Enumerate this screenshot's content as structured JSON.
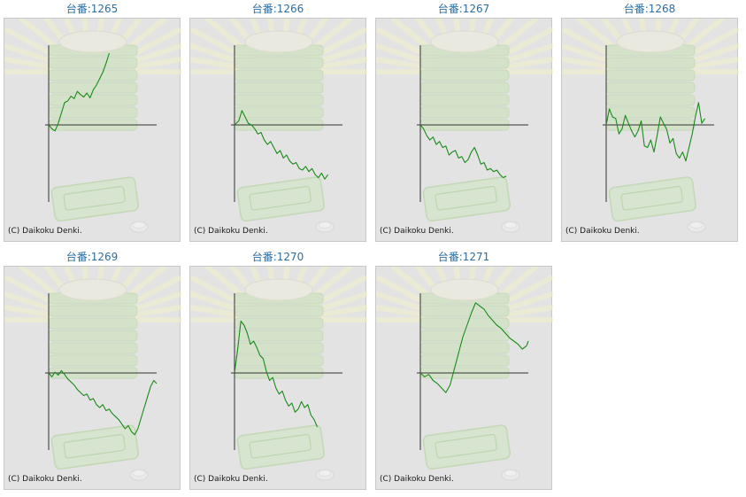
{
  "copyright": "(C) Daikoku Denki.",
  "line_color": "#1a8a1a",
  "axis_color": "#333333",
  "title_color": "#2a6fa6",
  "charts": [
    {
      "title": "台番:1265"
    },
    {
      "title": "台番:1266"
    },
    {
      "title": "台番:1267"
    },
    {
      "title": "台番:1268"
    },
    {
      "title": "台番:1269"
    },
    {
      "title": "台番:1270"
    },
    {
      "title": "台番:1271"
    }
  ],
  "chart_data": [
    {
      "type": "line",
      "title": "台番:1265",
      "xlim": [
        0,
        100
      ],
      "ylim": [
        -1,
        1
      ],
      "x": [
        0,
        3,
        6,
        9,
        12,
        15,
        18,
        21,
        24,
        27,
        30,
        33,
        36,
        39,
        42,
        45,
        48,
        51,
        54,
        57
      ],
      "y": [
        0,
        -0.05,
        -0.08,
        0.02,
        0.15,
        0.28,
        0.3,
        0.36,
        0.33,
        0.42,
        0.38,
        0.35,
        0.4,
        0.34,
        0.44,
        0.5,
        0.58,
        0.66,
        0.77,
        0.9
      ]
    },
    {
      "type": "line",
      "title": "台番:1266",
      "xlim": [
        0,
        100
      ],
      "ylim": [
        -1,
        1
      ],
      "x": [
        0,
        4,
        7,
        10,
        13,
        16,
        19,
        22,
        25,
        28,
        31,
        34,
        37,
        40,
        43,
        46,
        49,
        52,
        55,
        58,
        61,
        64,
        67,
        70,
        73,
        76,
        79,
        82,
        85,
        88
      ],
      "y": [
        0,
        0.05,
        0.18,
        0.1,
        0.02,
        0.0,
        -0.05,
        -0.12,
        -0.1,
        -0.2,
        -0.26,
        -0.22,
        -0.3,
        -0.38,
        -0.34,
        -0.44,
        -0.4,
        -0.48,
        -0.52,
        -0.5,
        -0.58,
        -0.6,
        -0.55,
        -0.62,
        -0.58,
        -0.66,
        -0.7,
        -0.64,
        -0.72,
        -0.66
      ]
    },
    {
      "type": "line",
      "title": "台番:1267",
      "xlim": [
        0,
        100
      ],
      "ylim": [
        -1,
        1
      ],
      "x": [
        0,
        3,
        6,
        9,
        12,
        15,
        18,
        21,
        24,
        27,
        30,
        33,
        36,
        39,
        42,
        45,
        48,
        51,
        54,
        57,
        60,
        63,
        66,
        69,
        72,
        75,
        78,
        81
      ],
      "y": [
        0,
        -0.05,
        -0.14,
        -0.2,
        -0.16,
        -0.26,
        -0.22,
        -0.3,
        -0.28,
        -0.4,
        -0.36,
        -0.34,
        -0.44,
        -0.42,
        -0.5,
        -0.46,
        -0.36,
        -0.3,
        -0.4,
        -0.52,
        -0.5,
        -0.6,
        -0.58,
        -0.62,
        -0.6,
        -0.66,
        -0.7,
        -0.68
      ]
    },
    {
      "type": "line",
      "title": "台番:1268",
      "xlim": [
        0,
        100
      ],
      "ylim": [
        -1,
        1
      ],
      "x": [
        0,
        3,
        6,
        9,
        12,
        15,
        18,
        21,
        24,
        27,
        30,
        33,
        36,
        39,
        42,
        45,
        48,
        51,
        54,
        57,
        60,
        63,
        66,
        69,
        72,
        75,
        78,
        81,
        84,
        87,
        90,
        93
      ],
      "y": [
        0,
        0.2,
        0.1,
        0.08,
        -0.12,
        -0.05,
        0.12,
        0.02,
        -0.08,
        -0.16,
        -0.08,
        0.05,
        -0.28,
        -0.3,
        -0.2,
        -0.36,
        -0.14,
        0.1,
        0.02,
        -0.06,
        -0.24,
        -0.18,
        -0.38,
        -0.44,
        -0.36,
        -0.48,
        -0.3,
        -0.12,
        0.1,
        0.28,
        0.02,
        0.08
      ]
    },
    {
      "type": "line",
      "title": "台番:1269",
      "xlim": [
        0,
        100
      ],
      "ylim": [
        -1,
        1
      ],
      "x": [
        0,
        3,
        6,
        9,
        12,
        15,
        18,
        21,
        24,
        27,
        30,
        33,
        36,
        39,
        42,
        45,
        48,
        51,
        54,
        57,
        60,
        63,
        66,
        69,
        72,
        75,
        78,
        81,
        84,
        87,
        90,
        93,
        96,
        99,
        102
      ],
      "y": [
        0,
        -0.05,
        0.01,
        -0.03,
        0.03,
        -0.02,
        -0.08,
        -0.12,
        -0.16,
        -0.22,
        -0.26,
        -0.3,
        -0.28,
        -0.36,
        -0.34,
        -0.42,
        -0.46,
        -0.42,
        -0.5,
        -0.48,
        -0.54,
        -0.58,
        -0.62,
        -0.68,
        -0.74,
        -0.7,
        -0.78,
        -0.82,
        -0.74,
        -0.6,
        -0.46,
        -0.32,
        -0.18,
        -0.1,
        -0.14
      ]
    },
    {
      "type": "line",
      "title": "台番:1270",
      "xlim": [
        0,
        100
      ],
      "ylim": [
        -1,
        1
      ],
      "x": [
        0,
        3,
        6,
        9,
        12,
        15,
        18,
        21,
        24,
        27,
        30,
        33,
        36,
        39,
        42,
        45,
        48,
        51,
        54,
        57,
        60,
        63,
        66,
        69,
        72,
        75,
        78
      ],
      "y": [
        0,
        0.3,
        0.65,
        0.6,
        0.5,
        0.36,
        0.4,
        0.32,
        0.22,
        0.18,
        0.02,
        -0.1,
        -0.06,
        -0.2,
        -0.28,
        -0.24,
        -0.36,
        -0.44,
        -0.4,
        -0.52,
        -0.48,
        -0.38,
        -0.46,
        -0.42,
        -0.56,
        -0.62,
        -0.72
      ]
    },
    {
      "type": "line",
      "title": "台番:1271",
      "xlim": [
        0,
        100
      ],
      "ylim": [
        -1,
        1
      ],
      "x": [
        0,
        4,
        8,
        12,
        16,
        20,
        24,
        28,
        32,
        36,
        40,
        44,
        48,
        52,
        56,
        60,
        64,
        68,
        72,
        76,
        80,
        84,
        88,
        92,
        96,
        100,
        104
      ],
      "y": [
        0,
        -0.05,
        -0.02,
        -0.1,
        -0.14,
        -0.2,
        -0.26,
        -0.16,
        0.05,
        0.25,
        0.45,
        0.6,
        0.75,
        0.88,
        0.84,
        0.8,
        0.72,
        0.66,
        0.6,
        0.56,
        0.5,
        0.44,
        0.4,
        0.36,
        0.3,
        0.34,
        0.4
      ]
    }
  ]
}
